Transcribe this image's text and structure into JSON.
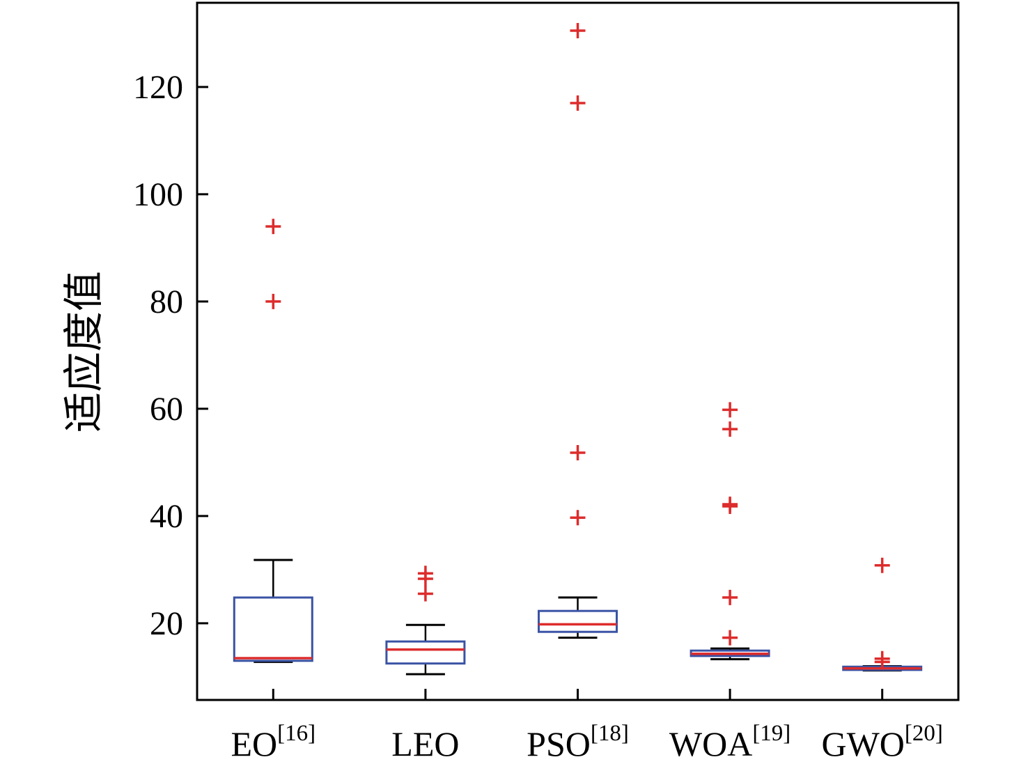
{
  "figure": {
    "background": "#ffffff"
  },
  "colors": {
    "box_edge": "#3a53a4",
    "median": "#dd2c2c",
    "outlier": "#dd2c2c",
    "whisker": "#000000",
    "axis": "#000000"
  },
  "chart_data": {
    "type": "box",
    "title": "",
    "xlabel": "",
    "ylabel": "适应度值",
    "ylim": [
      5.7,
      135.7
    ],
    "yticks": [
      20,
      40,
      60,
      80,
      100,
      120
    ],
    "grid": false,
    "legend": "none",
    "categories": [
      {
        "base": "EO",
        "sup": "[16]"
      },
      {
        "base": "LEO",
        "sup": ""
      },
      {
        "base": "PSO",
        "sup": "[18]"
      },
      {
        "base": "WOA",
        "sup": "[19]"
      },
      {
        "base": "GWO",
        "sup": "[20]"
      }
    ],
    "series": [
      {
        "name": "EO",
        "whisker_low": 12.8,
        "q1": 13.0,
        "median": 13.5,
        "q3": 24.8,
        "whisker_high": 31.8,
        "outliers": [
          94,
          80
        ]
      },
      {
        "name": "LEO",
        "whisker_low": 10.5,
        "q1": 12.5,
        "median": 15.1,
        "q3": 16.6,
        "whisker_high": 19.7,
        "outliers": [
          29.3,
          28.3,
          25.5
        ]
      },
      {
        "name": "PSO",
        "whisker_low": 17.3,
        "q1": 18.4,
        "median": 19.8,
        "q3": 22.3,
        "whisker_high": 24.8,
        "outliers": [
          130.5,
          117,
          51.8,
          39.7
        ]
      },
      {
        "name": "WOA",
        "whisker_low": 13.3,
        "q1": 13.9,
        "median": 14.3,
        "q3": 14.9,
        "whisker_high": 15.3,
        "outliers": [
          59.8,
          56.2,
          42.2,
          41.8,
          24.8,
          17.3
        ]
      },
      {
        "name": "GWO",
        "whisker_low": 11.2,
        "q1": 11.3,
        "median": 11.6,
        "q3": 11.9,
        "whisker_high": 12.0,
        "outliers": [
          30.8,
          13.4,
          12.8
        ]
      }
    ]
  }
}
